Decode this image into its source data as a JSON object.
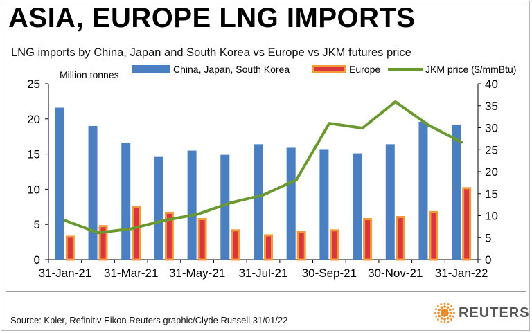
{
  "title": "ASIA, EUROPE LNG IMPORTS",
  "subtitle": "LNG imports by China, Japan and South Korea vs Europe vs JKM futures price",
  "source": "Source: Kpler, Refinitiv Eikon    Reuters graphic/Clyde Russell 31/01/22",
  "logo_text": "REUTERS",
  "chart_data": {
    "type": "bar",
    "title": "ASIA, EUROPE LNG IMPORTS",
    "subtitle": "LNG imports by China, Japan and South Korea vs Europe vs JKM futures price",
    "ylabel": "Million tonnes",
    "ylim": [
      0,
      25
    ],
    "y_ticks": [
      "0",
      "5",
      "10",
      "15",
      "20",
      "25"
    ],
    "y2_ticks": [
      "0",
      "5",
      "10",
      "15",
      "20",
      "25",
      "30",
      "35",
      "40"
    ],
    "y2lim": [
      0,
      40
    ],
    "x_tick_labels": [
      "31-Jan-21",
      "31-Mar-21",
      "31-May-21",
      "31-Jul-21",
      "30-Sep-21",
      "30-Nov-21",
      "31-Jan-22"
    ],
    "categories": [
      "Jan-21",
      "Feb-21",
      "Mar-21",
      "Apr-21",
      "May-21",
      "Jun-21",
      "Jul-21",
      "Aug-21",
      "Sep-21",
      "Oct-21",
      "Nov-21",
      "Dec-21",
      "Jan-22"
    ],
    "legend_position": "top",
    "grid": false,
    "series": [
      {
        "name": "China, Japan, South Korea",
        "type": "bar",
        "axis": "left",
        "color": "#4a7fc1",
        "values": [
          21.6,
          19.0,
          16.6,
          14.6,
          15.5,
          14.9,
          16.4,
          15.9,
          15.7,
          15.1,
          16.4,
          19.6,
          19.2
        ]
      },
      {
        "name": "Europe",
        "type": "bar",
        "axis": "left",
        "color": "#d9363e",
        "edge_color": "#f39a3a",
        "values": [
          3.4,
          4.9,
          7.6,
          6.8,
          5.9,
          4.3,
          3.6,
          4.1,
          4.3,
          5.9,
          6.2,
          6.9,
          10.3
        ]
      },
      {
        "name": "JKM price ($/mmBtu)",
        "type": "line",
        "axis": "right",
        "color": "#6a9a2f",
        "values": [
          8.9,
          6.1,
          7.0,
          8.9,
          10.3,
          12.9,
          14.7,
          18.1,
          31.0,
          29.9,
          35.9,
          30.6,
          26.7
        ]
      }
    ]
  }
}
